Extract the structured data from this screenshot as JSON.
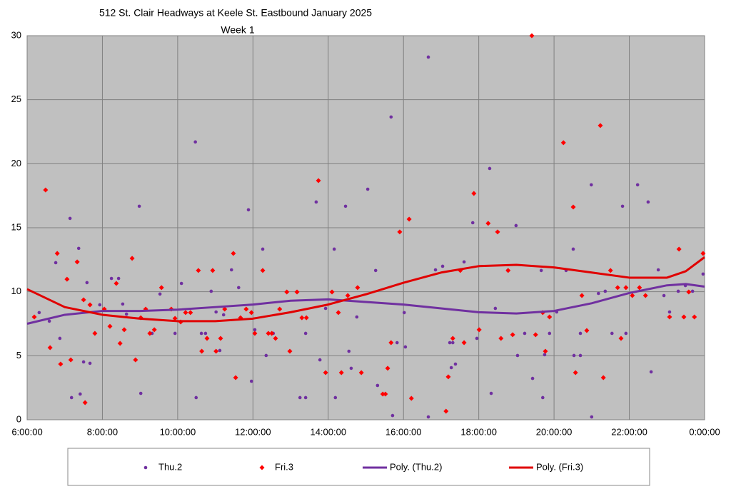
{
  "chart_data": {
    "type": "scatter",
    "title": "512 St. Clair Headways at Keele St. Eastbound January 2025",
    "subtitle": "Week 1",
    "xlim": [
      6,
      24
    ],
    "xticks": [
      {
        "value": 6,
        "label": "6:00:00"
      },
      {
        "value": 8,
        "label": "8:00:00"
      },
      {
        "value": 10,
        "label": "10:00:00"
      },
      {
        "value": 12,
        "label": "12:00:00"
      },
      {
        "value": 14,
        "label": "14:00:00"
      },
      {
        "value": 16,
        "label": "16:00:00"
      },
      {
        "value": 18,
        "label": "18:00:00"
      },
      {
        "value": 20,
        "label": "20:00:00"
      },
      {
        "value": 22,
        "label": "22:00:00"
      },
      {
        "value": 24,
        "label": "0:00:00"
      }
    ],
    "ylim": [
      0,
      30
    ],
    "yticks": [
      0,
      5,
      10,
      15,
      20,
      25,
      30
    ],
    "grid": true,
    "legend": "bottom",
    "series": [
      {
        "name": "Thu.2",
        "type": "scatter",
        "marker": "circle",
        "color": "#7030a0",
        "x": [
          6.32,
          6.59,
          6.76,
          6.87,
          7.14,
          7.18,
          7.37,
          7.41,
          7.5,
          7.59,
          7.67,
          7.93,
          8.24,
          8.43,
          8.54,
          8.64,
          8.98,
          9.02,
          9.32,
          9.53,
          9.93,
          10.1,
          10.47,
          10.49,
          10.63,
          10.74,
          10.89,
          11.02,
          11.12,
          11.22,
          11.43,
          11.62,
          11.88,
          11.96,
          12.05,
          12.26,
          12.35,
          12.54,
          13.25,
          13.4,
          13.4,
          13.68,
          13.78,
          13.93,
          14.16,
          14.19,
          14.46,
          14.55,
          14.61,
          14.76,
          15.05,
          15.26,
          15.31,
          15.67,
          15.71,
          15.83,
          16.02,
          16.05,
          16.66,
          16.66,
          16.85,
          17.04,
          17.23,
          17.27,
          17.31,
          17.38,
          17.61,
          17.84,
          17.95,
          18.29,
          18.33,
          18.44,
          18.77,
          18.99,
          19.03,
          19.22,
          19.43,
          19.66,
          19.7,
          19.75,
          19.88,
          20.07,
          20.32,
          20.53,
          20.51,
          20.7,
          20.7,
          20.99,
          21.0,
          21.18,
          21.36,
          21.54,
          21.82,
          21.91,
          22.22,
          22.5,
          22.58,
          22.77,
          22.92,
          23.07,
          23.3,
          23.49,
          23.68,
          23.96
        ],
        "values": [
          8.37,
          7.7,
          12.27,
          6.36,
          15.73,
          1.73,
          13.39,
          2.01,
          4.52,
          10.71,
          4.41,
          8.98,
          11.04,
          11.04,
          9.04,
          8.25,
          16.68,
          2.06,
          6.75,
          9.82,
          6.75,
          10.65,
          21.7,
          1.73,
          6.75,
          6.75,
          10.04,
          8.42,
          5.41,
          8.2,
          11.71,
          10.32,
          16.4,
          3.01,
          7.03,
          13.33,
          5.02,
          6.75,
          1.73,
          1.73,
          6.75,
          17.01,
          4.68,
          8.7,
          13.33,
          1.73,
          16.68,
          5.35,
          4.02,
          8.03,
          18.01,
          11.66,
          2.68,
          23.65,
          0.33,
          6.02,
          8.37,
          5.69,
          28.33,
          0.22,
          11.71,
          11.99,
          6.02,
          4.07,
          6.02,
          4.35,
          12.33,
          15.39,
          6.36,
          19.63,
          2.06,
          8.7,
          11.66,
          15.17,
          5.02,
          6.75,
          3.23,
          11.66,
          1.73,
          5.08,
          6.75,
          8.42,
          11.66,
          5.02,
          13.33,
          6.75,
          5.02,
          18.35,
          0.22,
          9.87,
          10.04,
          6.75,
          16.68,
          6.75,
          18.35,
          17.01,
          3.74,
          11.71,
          9.7,
          8.42,
          10.04,
          10.48,
          10.04,
          11.38
        ]
      },
      {
        "name": "Fri.3",
        "type": "scatter",
        "marker": "diamond",
        "color": "#ff0000",
        "x": [
          6.19,
          6.49,
          6.61,
          6.8,
          6.89,
          7.06,
          7.16,
          7.33,
          7.5,
          7.54,
          7.67,
          7.8,
          8.05,
          8.2,
          8.37,
          8.47,
          8.58,
          8.79,
          8.88,
          9.02,
          9.15,
          9.26,
          9.38,
          9.57,
          9.83,
          9.93,
          10.08,
          10.21,
          10.34,
          10.55,
          10.64,
          10.78,
          10.93,
          11.02,
          11.14,
          11.25,
          11.48,
          11.54,
          11.67,
          11.82,
          11.96,
          12.05,
          12.26,
          12.41,
          12.5,
          12.6,
          12.71,
          12.9,
          12.98,
          13.17,
          13.3,
          13.42,
          13.74,
          13.93,
          14.1,
          14.27,
          14.35,
          14.52,
          14.78,
          14.88,
          15.45,
          15.52,
          15.58,
          15.67,
          15.9,
          16.15,
          16.21,
          17.13,
          17.19,
          17.31,
          17.51,
          17.61,
          17.87,
          18.01,
          18.25,
          18.5,
          18.59,
          18.78,
          18.9,
          19.41,
          19.51,
          19.7,
          19.77,
          19.88,
          20.25,
          20.57,
          20.51,
          20.74,
          20.87,
          21.23,
          21.31,
          21.5,
          21.69,
          21.78,
          21.91,
          22.08,
          22.27,
          22.43,
          23.07,
          23.32,
          23.45,
          23.58,
          23.73,
          23.96
        ],
        "values": [
          8.03,
          17.95,
          5.63,
          12.99,
          4.35,
          10.98,
          4.68,
          12.33,
          9.37,
          1.34,
          8.98,
          6.75,
          8.64,
          7.3,
          10.65,
          5.97,
          7.03,
          12.61,
          4.68,
          7.97,
          8.64,
          6.75,
          7.03,
          10.32,
          8.64,
          7.92,
          7.64,
          8.37,
          8.37,
          11.66,
          5.35,
          6.36,
          11.66,
          5.35,
          6.36,
          8.64,
          12.99,
          3.29,
          7.97,
          8.64,
          8.37,
          6.75,
          11.66,
          6.75,
          6.75,
          6.36,
          8.64,
          9.98,
          5.35,
          9.98,
          7.97,
          7.97,
          18.68,
          3.68,
          9.98,
          8.37,
          3.68,
          9.7,
          10.32,
          3.68,
          2.01,
          2.01,
          4.02,
          6.02,
          14.67,
          15.67,
          1.67,
          0.67,
          3.35,
          6.36,
          11.66,
          6.02,
          17.68,
          7.03,
          15.34,
          14.67,
          6.36,
          11.66,
          6.64,
          30,
          6.64,
          8.37,
          5.35,
          8.03,
          21.64,
          3.68,
          16.62,
          9.7,
          6.97,
          22.98,
          3.29,
          11.66,
          10.32,
          6.36,
          10.32,
          9.7,
          10.32,
          9.7,
          8.03,
          13.33,
          8.03,
          9.98,
          8.03,
          12.99
        ]
      },
      {
        "name": "Poly. (Thu.2)",
        "type": "line",
        "color": "#7030a0",
        "x": [
          6,
          7,
          8,
          9,
          10,
          11,
          12,
          13,
          14,
          15,
          16,
          17,
          18,
          19,
          20,
          21,
          22,
          23,
          23.5,
          24
        ],
        "values": [
          7.5,
          8.2,
          8.5,
          8.5,
          8.6,
          8.8,
          9.0,
          9.3,
          9.4,
          9.2,
          9.0,
          8.7,
          8.4,
          8.3,
          8.5,
          9.1,
          9.9,
          10.5,
          10.6,
          10.4
        ]
      },
      {
        "name": "Poly. (Fri.3)",
        "type": "line",
        "color": "#e00000",
        "x": [
          6,
          7,
          8,
          9,
          10,
          11,
          12,
          13,
          14,
          15,
          16,
          17,
          18,
          19,
          20,
          21,
          22,
          23,
          23.5,
          24
        ],
        "values": [
          10.2,
          8.8,
          8.2,
          7.9,
          7.7,
          7.7,
          7.9,
          8.4,
          9.0,
          9.8,
          10.7,
          11.5,
          12.0,
          12.1,
          11.9,
          11.5,
          11.1,
          11.1,
          11.6,
          12.7
        ]
      }
    ]
  }
}
